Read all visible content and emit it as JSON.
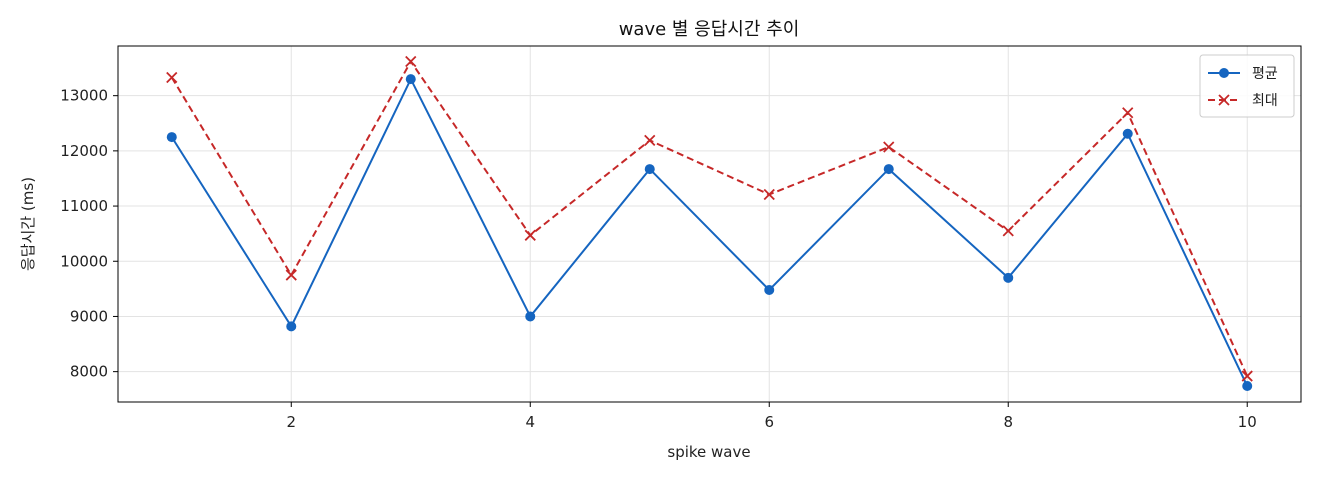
{
  "chart_data": {
    "type": "line",
    "title": "wave 별 응답시간 추이",
    "xlabel": "spike wave",
    "ylabel": "응답시간 (ms)",
    "x": [
      1,
      2,
      3,
      4,
      5,
      6,
      7,
      8,
      9,
      10
    ],
    "xlim": [
      0.55,
      10.45
    ],
    "ylim": [
      7450,
      13900
    ],
    "xticks": [
      2,
      4,
      6,
      8,
      10
    ],
    "yticks": [
      8000,
      9000,
      10000,
      11000,
      12000,
      13000
    ],
    "grid": true,
    "legend_position": "top-right",
    "series": [
      {
        "name": "평균",
        "color": "#1565c0",
        "linestyle": "solid",
        "marker": "circle",
        "values": [
          12250,
          8820,
          13300,
          9000,
          11670,
          9480,
          11670,
          9700,
          12310,
          7740
        ]
      },
      {
        "name": "최대",
        "color": "#c62828",
        "linestyle": "dashed",
        "marker": "x",
        "values": [
          13330,
          9750,
          13620,
          10470,
          12190,
          11210,
          12070,
          10550,
          12690,
          7920
        ]
      }
    ]
  }
}
